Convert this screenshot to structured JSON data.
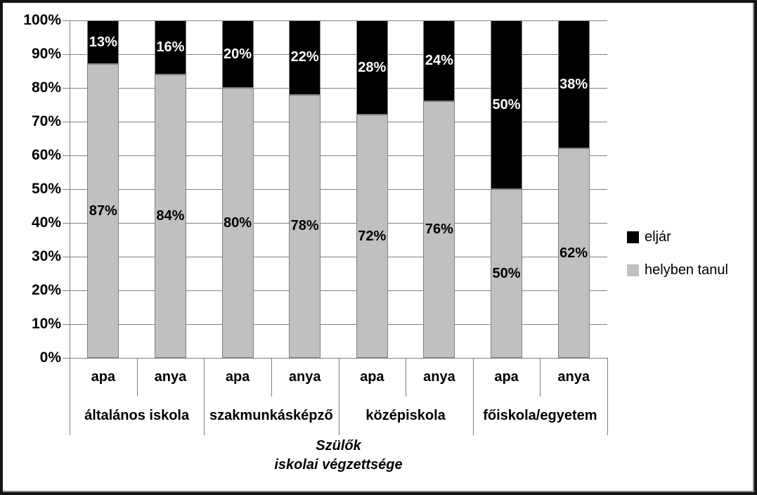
{
  "chart_data": {
    "type": "bar",
    "subtype": "100-percent-stacked-column",
    "title": "",
    "x_axis_title_lines": [
      "Szülők",
      "iskolai végzettsége"
    ],
    "y_axis": {
      "tick_labels": [
        "100%",
        "90%",
        "80%",
        "70%",
        "60%",
        "50%",
        "40%",
        "30%",
        "20%",
        "10%",
        "0%"
      ],
      "min": 0,
      "max": 100,
      "step": 10,
      "unit": "%"
    },
    "groups": [
      "általános iskola",
      "szakmunkásképző",
      "középiskola",
      "főiskola/egyetem"
    ],
    "bar_labels": [
      "apa",
      "anya",
      "apa",
      "anya",
      "apa",
      "anya",
      "apa",
      "anya"
    ],
    "series": [
      {
        "name": "eljár",
        "color": "#000000",
        "label_color": "#ffffff",
        "values": [
          13,
          16,
          20,
          22,
          28,
          24,
          50,
          38
        ]
      },
      {
        "name": "helyben tanul",
        "color": "#c0c0c0",
        "label_color": "#000000",
        "values": [
          87,
          84,
          80,
          78,
          72,
          76,
          50,
          62
        ]
      }
    ],
    "stack_order_top_to_bottom": [
      "eljár",
      "helyben tanul"
    ],
    "data_label_format": "{v}%",
    "legend": {
      "position": "right",
      "entries": [
        {
          "label": "eljár",
          "color": "#000000"
        },
        {
          "label": "helyben tanul",
          "color": "#c0c0c0"
        }
      ]
    },
    "grid": {
      "horizontal": true,
      "vertical": false,
      "color": "#808080"
    },
    "bar_border_color": "#808080",
    "ylim": [
      0,
      100
    ]
  }
}
